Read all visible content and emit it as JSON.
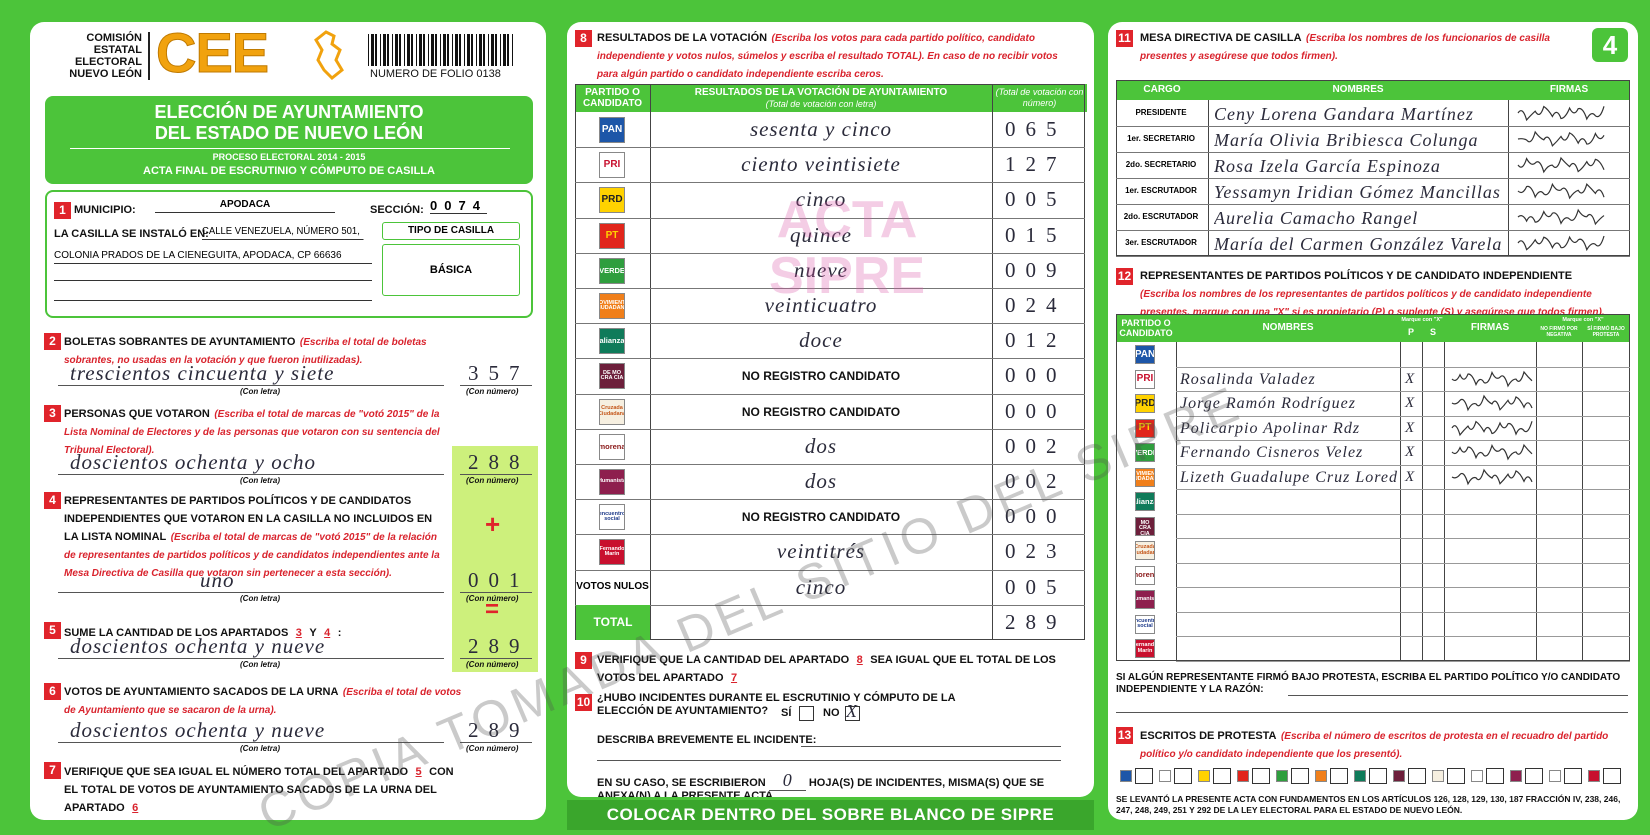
{
  "header": {
    "org": [
      "COMISIÓN",
      "ESTATAL",
      "ELECTORAL",
      "NUEVO LEÓN"
    ],
    "logo": "CEE",
    "folio": "NUMERO DE FOLIO 0138",
    "title": [
      "ELECCIÓN DE AYUNTAMIENTO",
      "DEL ESTADO DE NUEVO LEÓN"
    ],
    "process": "PROCESO ELECTORAL  2014 - 2015",
    "acta": "ACTA FINAL DE ESCRUTINIO Y CÓMPUTO DE CASILLA",
    "page": "4"
  },
  "parties": [
    {
      "label": "PAN"
    },
    {
      "label": "PRI"
    },
    {
      "label": "PRD"
    },
    {
      "label": "PT"
    },
    {
      "label": "VERDE"
    },
    {
      "label": "MOVIMIENTO CIUDADANO"
    },
    {
      "label": "alianza"
    },
    {
      "label": "DE MO CRA CIA"
    },
    {
      "label": "Cruzada Ciudadana"
    },
    {
      "label": "morena"
    },
    {
      "label": "Humanista"
    },
    {
      "label": "encuentro social"
    },
    {
      "label": "Fernando Marín"
    }
  ],
  "s1": {
    "num": "1",
    "municipio_label": "MUNICIPIO:",
    "municipio": "APODACA",
    "seccion_label": "SECCIÓN:",
    "seccion": "0074",
    "installed_label": "LA CASILLA SE INSTALÓ EN:",
    "address": [
      "CALLE VENEZUELA, NÚMERO 501,",
      "COLONIA PRADOS DE LA CIENEGUITA, APODACA, CP 66636"
    ],
    "tipo_label": "TIPO DE CASILLA",
    "tipo": "BÁSICA"
  },
  "s2": {
    "num": "2",
    "title": "BOLETAS SOBRANTES DE AYUNTAMIENTO",
    "instruction": "(Escriba el total de boletas sobrantes, no usadas en la votación y que fueron inutilizadas).",
    "words": "trescientos cincuenta y siete",
    "number": "357",
    "letra_label": "(Con letra)",
    "numero_label": "(Con número)"
  },
  "s3": {
    "num": "3",
    "title": "PERSONAS QUE VOTARON",
    "instruction": "(Escriba el total de marcas de \"votó 2015\" de la Lista Nominal de Electores y de las personas que votaron con su sentencia del Tribunal Electoral).",
    "words": "doscientos ochenta y ocho",
    "number": "288",
    "letra_label": "(Con letra)",
    "numero_label": "(Con número)"
  },
  "s4": {
    "num": "4",
    "title": "REPRESENTANTES DE PARTIDOS POLÍTICOS Y DE CANDIDATOS INDEPENDIENTES QUE VOTARON EN LA CASILLA NO INCLUIDOS EN LA LISTA NOMINAL",
    "instruction": "(Escriba el total de marcas de \"votó 2015\" de la relación de representantes de partidos políticos y de candidatos independientes ante la Mesa Directiva de Casilla que votaron sin pertenecer a esta sección).",
    "plus": "+",
    "words": "uno",
    "number": "001",
    "letra_label": "(Con letra)",
    "numero_label": "(Con número)",
    "equals": "="
  },
  "s5": {
    "num": "5",
    "parts": [
      {
        "t": "SUME LA CANTIDAD DE LOS APARTADOS"
      },
      {
        "ref": "3"
      },
      {
        "t": "Y"
      },
      {
        "ref": "4"
      },
      {
        "t": ":"
      }
    ],
    "words": "doscientos ochenta y nueve",
    "number": "289",
    "letra_label": "(Con letra)",
    "numero_label": "(Con número)"
  },
  "s6": {
    "num": "6",
    "title": "VOTOS DE AYUNTAMIENTO SACADOS DE LA URNA",
    "instruction": "(Escriba el total de votos de Ayuntamiento que se sacaron de la urna).",
    "words": "doscientos ochenta y nueve",
    "number": "289",
    "letra_label": "(Con letra)",
    "numero_label": "(Con número)"
  },
  "s7": {
    "num": "7",
    "parts": [
      {
        "t": "VERIFIQUE QUE SEA IGUAL EL NÚMERO TOTAL DEL APARTADO"
      },
      {
        "ref": "5"
      },
      {
        "t": "CON EL TOTAL DE VOTOS DE AYUNTAMIENTO SACADOS DE LA URNA DEL APARTADO"
      },
      {
        "ref": "6"
      }
    ]
  },
  "s8": {
    "num": "8",
    "title": "RESULTADOS DE LA VOTACIÓN",
    "instruction": "(Escriba los votos para cada partido político, candidato independiente y votos nulos, súmelos y escriba el resultado TOTAL). En caso de no recibir votos para algún partido o candidato independiente escriba ceros.",
    "headers": [
      "PARTIDO O CANDIDATO",
      "RESULTADOS DE LA VOTACIÓN DE AYUNTAMIENTO",
      "(Total de votación con letra)",
      "(Total de votación con número)"
    ],
    "results": [
      {
        "words": "sesenta y cinco",
        "number": "065"
      },
      {
        "words": "ciento veintisiete",
        "number": "127"
      },
      {
        "words": "cinco",
        "number": "005"
      },
      {
        "words": "quince",
        "number": "015"
      },
      {
        "words": "nueve",
        "number": "009"
      },
      {
        "words": "veinticuatro",
        "number": "024"
      },
      {
        "words": "doce",
        "number": "012"
      },
      {
        "no_registro": "NO REGISTRO CANDIDATO",
        "number": "000"
      },
      {
        "no_registro": "NO REGISTRO CANDIDATO",
        "number": "000"
      },
      {
        "words": "dos",
        "number": "002"
      },
      {
        "words": "dos",
        "number": "002"
      },
      {
        "no_registro": "NO REGISTRO CANDIDATO",
        "number": "000"
      },
      {
        "words": "veintitrés",
        "number": "023"
      }
    ],
    "nulos": {
      "label": "VOTOS NULOS",
      "words": "cinco",
      "number": "005"
    },
    "total": {
      "label": "TOTAL",
      "number": "289"
    },
    "watermark": "ACTA SIPRE"
  },
  "s9": {
    "num": "9",
    "parts": [
      {
        "t": "VERIFIQUE QUE LA CANTIDAD DEL APARTADO"
      },
      {
        "ref": "8"
      },
      {
        "t": "SEA IGUAL QUE EL TOTAL DE LOS VOTOS DEL APARTADO"
      },
      {
        "ref": "7"
      }
    ]
  },
  "s10": {
    "num": "10",
    "question": "¿HUBO INCIDENTES DURANTE EL ESCRUTINIO Y CÓMPUTO DE LA ELECCIÓN DE AYUNTAMIENTO?",
    "yes": "SÍ",
    "no": "NO",
    "mark": "X",
    "describe": "DESCRIBA BREVEMENTE EL INCIDENTE:",
    "before": "EN SU CASO, SE ESCRIBIERON",
    "count": "0",
    "after": "HOJA(S) DE INCIDENTES, MISMA(S) QUE SE ANEXA(N) A LA PRESENTE ACTA."
  },
  "footer": "COLOCAR DENTRO DEL SOBRE BLANCO DE SIPRE",
  "s11": {
    "num": "11",
    "title": "MESA DIRECTIVA DE CASILLA",
    "instruction": "(Escriba los nombres de los funcionarios de casilla presentes y asegúrese que todos firmen).",
    "headers": [
      "CARGO",
      "NOMBRES",
      "FIRMAS"
    ],
    "rows": [
      {
        "cargo": "PRESIDENTE",
        "name": "Ceny Lorena Gandara Martínez"
      },
      {
        "cargo": "1er. SECRETARIO",
        "name": "María Olivia Bribiesca Colunga"
      },
      {
        "cargo": "2do. SECRETARIO",
        "name": "Rosa Izela García Espinoza"
      },
      {
        "cargo": "1er. ESCRUTADOR",
        "name": "Yessamyn Iridian Gómez Mancillas"
      },
      {
        "cargo": "2do. ESCRUTADOR",
        "name": "Aurelia Camacho Rangel"
      },
      {
        "cargo": "3er. ESCRUTADOR",
        "name": "María del Carmen González Varela"
      }
    ]
  },
  "s12": {
    "num": "12",
    "title": "REPRESENTANTES DE PARTIDOS POLÍTICOS Y DE CANDIDATO INDEPENDIENTE",
    "instruction": "(Escriba los nombres de los representantes de partidos políticos y de candidato independiente presentes, marque con una \"X\" si es propietario (P) o suplente (S) y asegúrese que todos firmen).",
    "headers": [
      "PARTIDO O CANDIDATO",
      "NOMBRES",
      "Marque con \"X\"",
      "P",
      "S",
      "FIRMAS",
      "Marque con \"X\"",
      "NO FIRMÓ POR NEGATIVA",
      "SÍ FIRMÓ BAJO PROTESTA"
    ],
    "rows": [
      null,
      {
        "name": "Rosalinda Valadez",
        "p": "X"
      },
      {
        "name": "Jorge Ramón Rodríguez",
        "p": "X"
      },
      {
        "name": "Policarpio Apolinar Rdz",
        "p": "X"
      },
      {
        "name": "Fernando Cisneros Velez",
        "p": "X"
      },
      {
        "name": "Lizeth Guadalupe Cruz Loredo",
        "p": "X"
      },
      null,
      null,
      null,
      null,
      null,
      null,
      null
    ],
    "protest_note": "SI ALGÚN REPRESENTANTE FIRMÓ BAJO PROTESTA, ESCRIBA EL PARTIDO POLÍTICO Y/O CANDIDATO INDEPENDIENTE Y LA RAZÓN:"
  },
  "s13": {
    "num": "13",
    "title": "ESCRITOS DE PROTESTA",
    "instruction": "(Escriba el número de escritos de protesta en el recuadro del partido político y/o candidato independiente que los presentó)."
  },
  "legal": "SE LEVANTÓ LA PRESENTE ACTA CON FUNDAMENTOS EN LOS ARTÍCULOS 126, 128, 129, 130, 187 FRACCIÓN IV, 238, 246, 247, 248, 249, 251 Y 292 DE LA LEY ELECTORAL PARA EL ESTADO DE NUEVO LEÓN.",
  "watermark": "COPIA TOMADA DEL SITIO DEL SIPRE"
}
